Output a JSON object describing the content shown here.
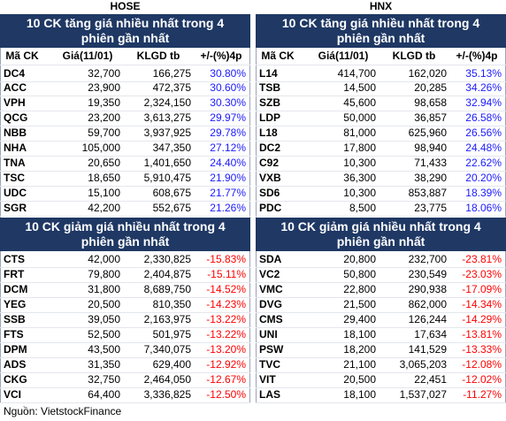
{
  "panels": [
    {
      "exchange": "HOSE",
      "gainers": {
        "title": "10 CK tăng giá nhiều nhất trong 4 phiên gần nhất",
        "columns": [
          "Mã CK",
          "Giá(11/01)",
          "KLGD tb",
          "+/-(%)4p"
        ],
        "rows": [
          [
            "DC4",
            "32,700",
            "166,275",
            "30.80%"
          ],
          [
            "ACC",
            "23,900",
            "472,375",
            "30.60%"
          ],
          [
            "VPH",
            "19,350",
            "2,324,150",
            "30.30%"
          ],
          [
            "QCG",
            "23,200",
            "3,613,275",
            "29.97%"
          ],
          [
            "NBB",
            "59,700",
            "3,937,925",
            "29.78%"
          ],
          [
            "NHA",
            "105,000",
            "347,350",
            "27.12%"
          ],
          [
            "TNA",
            "20,650",
            "1,401,650",
            "24.40%"
          ],
          [
            "TSC",
            "18,650",
            "5,910,475",
            "21.90%"
          ],
          [
            "UDC",
            "15,100",
            "608,675",
            "21.77%"
          ],
          [
            "SGR",
            "42,200",
            "552,675",
            "21.26%"
          ]
        ]
      },
      "losers": {
        "title": "10 CK giảm giá nhiều nhất trong 4 phiên gần nhất",
        "rows": [
          [
            "CTS",
            "42,000",
            "2,330,825",
            "-15.83%"
          ],
          [
            "FRT",
            "79,800",
            "2,404,875",
            "-15.11%"
          ],
          [
            "DCM",
            "31,800",
            "8,689,750",
            "-14.52%"
          ],
          [
            "YEG",
            "20,500",
            "810,350",
            "-14.23%"
          ],
          [
            "SSB",
            "39,050",
            "2,163,975",
            "-13.22%"
          ],
          [
            "FTS",
            "52,500",
            "501,975",
            "-13.22%"
          ],
          [
            "DPM",
            "43,500",
            "7,340,075",
            "-13.20%"
          ],
          [
            "ADS",
            "31,350",
            "629,400",
            "-12.92%"
          ],
          [
            "CKG",
            "32,750",
            "2,464,050",
            "-12.67%"
          ],
          [
            "VCI",
            "64,400",
            "3,336,825",
            "-12.50%"
          ]
        ]
      }
    },
    {
      "exchange": "HNX",
      "gainers": {
        "title": "10 CK tăng giá nhiều nhất trong 4 phiên gần nhất",
        "columns": [
          "Mã CK",
          "Giá(11/01)",
          "KLGD tb",
          "+/-(%)4p"
        ],
        "rows": [
          [
            "L14",
            "414,700",
            "162,020",
            "35.13%"
          ],
          [
            "TSB",
            "14,500",
            "20,285",
            "34.26%"
          ],
          [
            "SZB",
            "45,600",
            "98,658",
            "32.94%"
          ],
          [
            "LDP",
            "50,000",
            "36,857",
            "26.58%"
          ],
          [
            "L18",
            "81,000",
            "625,960",
            "26.56%"
          ],
          [
            "DC2",
            "17,800",
            "98,940",
            "24.48%"
          ],
          [
            "C92",
            "10,300",
            "71,433",
            "22.62%"
          ],
          [
            "VXB",
            "36,300",
            "38,290",
            "20.20%"
          ],
          [
            "SD6",
            "10,300",
            "853,887",
            "18.39%"
          ],
          [
            "PDC",
            "8,500",
            "23,775",
            "18.06%"
          ]
        ]
      },
      "losers": {
        "title": "10 CK giảm giá nhiều nhất trong 4 phiên gần nhất",
        "rows": [
          [
            "SDA",
            "20,800",
            "232,700",
            "-23.81%"
          ],
          [
            "VC2",
            "50,800",
            "230,549",
            "-23.03%"
          ],
          [
            "VMC",
            "22,800",
            "290,938",
            "-17.09%"
          ],
          [
            "DVG",
            "21,500",
            "862,000",
            "-14.34%"
          ],
          [
            "CMS",
            "29,400",
            "126,244",
            "-14.29%"
          ],
          [
            "UNI",
            "18,100",
            "17,634",
            "-13.81%"
          ],
          [
            "PSW",
            "18,200",
            "141,529",
            "-13.33%"
          ],
          [
            "TVC",
            "21,100",
            "3,065,203",
            "-12.08%"
          ],
          [
            "VIT",
            "20,500",
            "22,451",
            "-12.02%"
          ],
          [
            "LAS",
            "18,100",
            "1,537,027",
            "-11.27%"
          ]
        ]
      }
    }
  ],
  "source": "Nguồn: VietstockFinance"
}
